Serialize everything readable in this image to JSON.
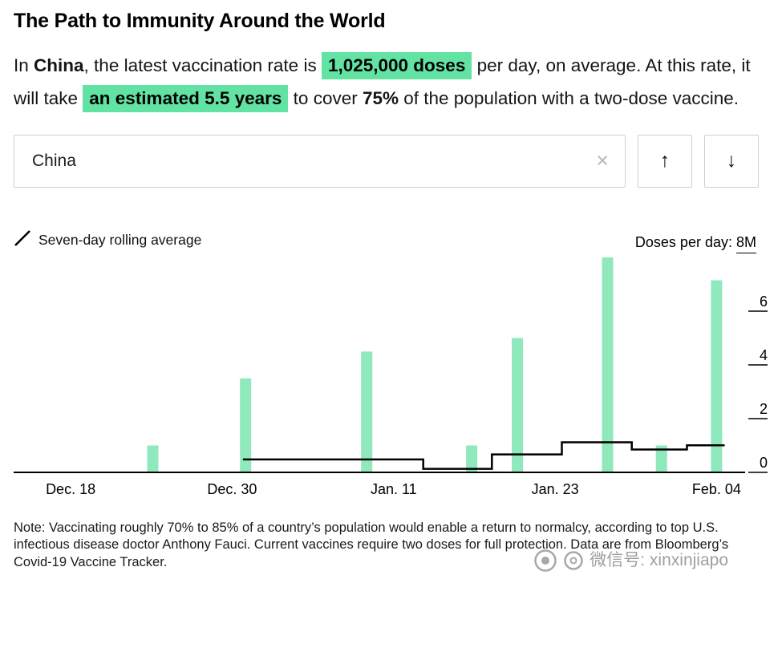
{
  "page": {
    "title": "The Path to Immunity Around the World"
  },
  "summary": {
    "prefix": "In ",
    "country": "China",
    "mid1": ", the latest vaccination rate is ",
    "rate_highlight": "1,025,000 doses",
    "mid2": " per day, on average. At this rate, it will take ",
    "duration_highlight": "an estimated 5.5 years",
    "mid3": " to cover ",
    "coverage": "75%",
    "suffix": " of the population with a two-dose vaccine."
  },
  "search": {
    "value": "China",
    "clear_icon": "×",
    "up_icon": "↑",
    "down_icon": "↓"
  },
  "legend": {
    "label": "Seven-day rolling average"
  },
  "chart_data": {
    "type": "bar",
    "title": "Doses per day",
    "y_axis": {
      "label_prefix": "Doses per day:",
      "top_tick_label": "8M",
      "ticks": [
        8,
        6,
        4,
        2,
        0
      ],
      "max": 8,
      "unit": "millions of doses"
    },
    "x_axis": {
      "start_date": "Dec. 14",
      "end_date": "Feb. 06",
      "span_days": 54,
      "ticks": [
        {
          "label": "Dec. 18",
          "day": 4
        },
        {
          "label": "Dec. 30",
          "day": 16
        },
        {
          "label": "Jan. 11",
          "day": 28
        },
        {
          "label": "Jan. 23",
          "day": 40
        },
        {
          "label": "Feb. 04",
          "day": 52
        }
      ]
    },
    "bars": [
      {
        "date": "Dec. 24",
        "day": 10.1,
        "value": 1.0
      },
      {
        "date": "Dec. 31",
        "day": 17.0,
        "value": 3.5
      },
      {
        "date": "Jan. 09",
        "day": 26.0,
        "value": 4.5
      },
      {
        "date": "Jan. 17",
        "day": 33.8,
        "value": 1.0
      },
      {
        "date": "Jan. 20",
        "day": 37.2,
        "value": 5.0
      },
      {
        "date": "Jan. 27",
        "day": 43.9,
        "value": 8.0
      },
      {
        "date": "Jan. 31",
        "day": 47.9,
        "value": 1.0
      },
      {
        "date": "Feb. 04",
        "day": 52.0,
        "value": 7.15
      }
    ],
    "rolling_average_steps": [
      {
        "from_day": 16.8,
        "to_day": 30.2,
        "value": 0.48
      },
      {
        "from_day": 30.2,
        "to_day": 35.3,
        "value": 0.13
      },
      {
        "from_day": 35.3,
        "to_day": 40.5,
        "value": 0.67
      },
      {
        "from_day": 40.5,
        "to_day": 45.7,
        "value": 1.12
      },
      {
        "from_day": 45.7,
        "to_day": 49.8,
        "value": 0.85
      },
      {
        "from_day": 49.8,
        "to_day": 52.6,
        "value": 1.01
      }
    ],
    "colors": {
      "bar": "#90e8bd",
      "line": "#000000",
      "highlight": "#63e3a3"
    },
    "legend_position": "top-left",
    "grid": false
  },
  "note": {
    "text": "Note: Vaccinating roughly 70% to 85% of a country’s population would enable a return to normalcy, according to top U.S. infectious disease doctor Anthony Fauci. Current vaccines require two doses for full protection. Data are from Bloomberg’s Covid-19 Vaccine Tracker."
  },
  "watermark": {
    "text": "微信号: xinxinjiapo"
  }
}
